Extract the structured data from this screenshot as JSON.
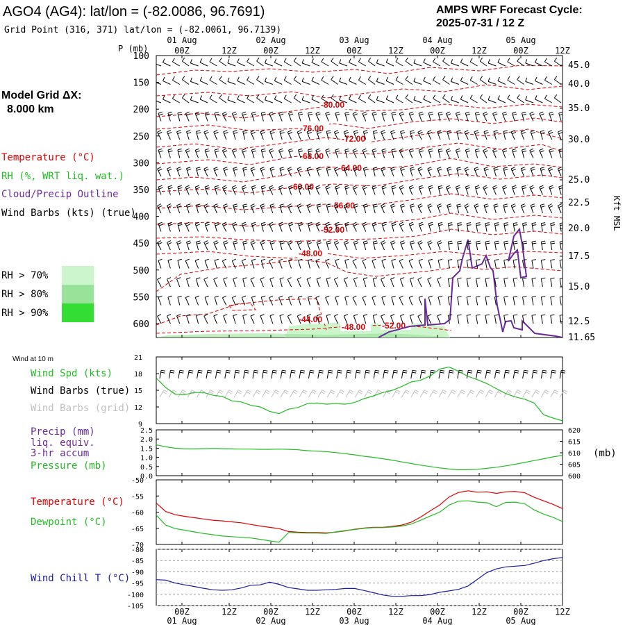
{
  "header": {
    "station": "AGO4 (AG4):  lat/lon = (-82.0086, 96.7691)",
    "grid_point": "Grid Point (316, 371) lat/lon = (-82.0061, 96.7139)",
    "cycle_line1": "AMPS WRF Forecast Cycle:",
    "cycle_line2": "2025-07-31 / 12  Z"
  },
  "left_labels": {
    "model_grid_1": "Model Grid ΔX:",
    "model_grid_2": "8.000 km",
    "temperature": "Temperature (°C)",
    "rh": "RH (%, WRT liq. wat.)",
    "cloud": "Cloud/Precip Outline",
    "barbs": "Wind Barbs (kts) (true)",
    "rh70": "RH > 70%",
    "rh80": "RH > 80%",
    "rh90": "RH > 90%",
    "wind10m": "Wind at 10 m",
    "wspd": "Wind Spd (kts)",
    "barbs_true": "Wind Barbs (true)",
    "barbs_grid": "Wind Barbs (grid)",
    "precip1": "Precip (mm)",
    "precip2": "liq. equiv.",
    "precip3": "3-hr accum",
    "pressure": "Pressure (mb)",
    "temp2": "Temperature (°C)",
    "dewpoint": "Dewpoint (°C)",
    "windchill": "Wind Chill T (°C)",
    "mb_unit": "(mb)",
    "kft": "Kft MSL",
    "p_unit": "P (mb)"
  },
  "colors": {
    "temp": "#e00000",
    "rh": "#22bb22",
    "cloud": "#6a2a9a",
    "chill": "#1a1aa0",
    "rh70": "#ccf5cc",
    "rh80": "#99e299",
    "rh90": "#33dd33"
  },
  "time_axis": {
    "ticks": [
      "00Z",
      "12Z",
      "00Z",
      "12Z",
      "00Z",
      "12Z",
      "00Z",
      "12Z",
      "00Z",
      "12Z"
    ],
    "dates": [
      "01 Aug",
      "02 Aug",
      "03 Aug",
      "04 Aug",
      "05 Aug"
    ]
  },
  "chart_data": [
    {
      "type": "line",
      "panel": "time-height cross section",
      "y_ticks": [
        "100",
        "150",
        "200",
        "250",
        "300",
        "350",
        "400",
        "450",
        "500",
        "550",
        "600"
      ],
      "y_right": [
        "45.0",
        "40.0",
        "35.0",
        "30.0",
        "25.0",
        "22.5",
        "20.0",
        "17.5",
        "15.0",
        "12.5",
        "11.65"
      ],
      "temp_labels": [
        "-80.00",
        "-76.00",
        "-72.00",
        "-68.00",
        "-64.00",
        "-60.00",
        "-56.00",
        "-52.00",
        "-48.00",
        "-44.00",
        "-48.00",
        "-52.00"
      ]
    },
    {
      "type": "line",
      "panel": "10 m wind speed",
      "y_ticks": [
        "21",
        "18",
        "15",
        "12",
        "9"
      ],
      "ylim": [
        9,
        21
      ],
      "values": [
        17.2,
        15.5,
        14.3,
        14.2,
        14.6,
        14.6,
        14.1,
        13.9,
        13.1,
        12.9,
        12.3,
        12.0,
        11.2,
        10.8,
        11.6,
        11.9,
        12.6,
        12.7,
        12.5,
        12.6,
        12.5,
        12.8,
        13.5,
        14.0,
        14.6,
        15.0,
        15.7,
        16.5,
        16.8,
        17.6,
        18.8,
        19.2,
        18.4,
        17.5,
        16.9,
        16.2,
        15.3,
        14.4,
        13.8,
        13.4,
        12.7,
        10.6,
        10.0,
        9.5
      ]
    },
    {
      "type": "line",
      "panel": "precip / pressure",
      "y_ticks_left": [
        "2.5",
        "2.0",
        "1.5",
        "1.0",
        "0.5",
        "0.0"
      ],
      "y_ticks_right": [
        "620",
        "615",
        "610",
        "605",
        "600"
      ],
      "ylim": [
        600,
        620
      ],
      "values": [
        613.5,
        612.6,
        612.0,
        611.7,
        611.7,
        611.8,
        611.9,
        611.8,
        611.7,
        611.6,
        611.6,
        611.5,
        611.5,
        611.6,
        611.5,
        611.3,
        610.9,
        610.7,
        610.5,
        610.1,
        609.6,
        609.1,
        608.5,
        608.0,
        607.4,
        606.8,
        606.0,
        605.3,
        604.6,
        604.0,
        603.4,
        602.9,
        602.6,
        602.6,
        602.8,
        603.2,
        603.7,
        604.3,
        605.0,
        605.8,
        606.6,
        607.4,
        608.2,
        608.9
      ]
    },
    {
      "type": "line",
      "panel": "temperature / dewpoint",
      "y_ticks": [
        "-50",
        "-55",
        "-60",
        "-65",
        "-70"
      ],
      "ylim": [
        -70,
        -50
      ],
      "series": [
        {
          "name": "Temperature (°C)",
          "values": [
            -57.2,
            -59.8,
            -60.8,
            -61.3,
            -61.7,
            -62.1,
            -62.5,
            -62.7,
            -63.0,
            -63.3,
            -63.8,
            -64.3,
            -64.7,
            -65.1,
            -66.0,
            -66.2,
            -66.3,
            -66.3,
            -66.4,
            -66.2,
            -65.8,
            -65.3,
            -64.9,
            -64.7,
            -64.7,
            -64.4,
            -64.0,
            -63.1,
            -61.5,
            -59.6,
            -57.8,
            -55.3,
            -53.9,
            -53.4,
            -53.8,
            -53.7,
            -54.2,
            -53.7,
            -53.6,
            -54.0,
            -55.4,
            -56.5,
            -57.6,
            -58.9
          ]
        },
        {
          "name": "Dewpoint (°C)",
          "values": [
            -60.9,
            -64.0,
            -65.1,
            -65.6,
            -66.1,
            -66.6,
            -67.0,
            -67.4,
            -67.6,
            -67.8,
            -68.0,
            -68.4,
            -68.9,
            -69.3,
            -66.3,
            -66.4,
            -66.5,
            -66.5,
            -66.6,
            -66.1,
            -65.7,
            -65.4,
            -65.0,
            -64.8,
            -64.8,
            -64.6,
            -64.3,
            -63.7,
            -62.5,
            -61.2,
            -60.0,
            -57.8,
            -56.6,
            -56.5,
            -56.9,
            -57.1,
            -58.3,
            -57.0,
            -56.9,
            -57.4,
            -59.3,
            -60.6,
            -61.6,
            -62.9
          ]
        }
      ]
    },
    {
      "type": "line",
      "panel": "wind chill",
      "y_ticks": [
        "-80",
        "-85",
        "-90",
        "-95",
        "-100",
        "-105"
      ],
      "ylim": [
        -105,
        -80
      ],
      "values": [
        -93.5,
        -93.7,
        -95.0,
        -95.8,
        -96.5,
        -97.3,
        -98.0,
        -98.2,
        -98.0,
        -97.2,
        -96.0,
        -95.8,
        -94.6,
        -95.6,
        -97.0,
        -97.6,
        -98.2,
        -98.2,
        -98.0,
        -97.8,
        -97.4,
        -97.4,
        -98.3,
        -99.3,
        -100.3,
        -100.9,
        -100.9,
        -100.6,
        -100.6,
        -100.1,
        -99.1,
        -98.5,
        -97.8,
        -96.3,
        -93.3,
        -90.3,
        -88.7,
        -87.8,
        -87.5,
        -87.2,
        -86.2,
        -85.0,
        -84.2,
        -83.6
      ]
    }
  ]
}
